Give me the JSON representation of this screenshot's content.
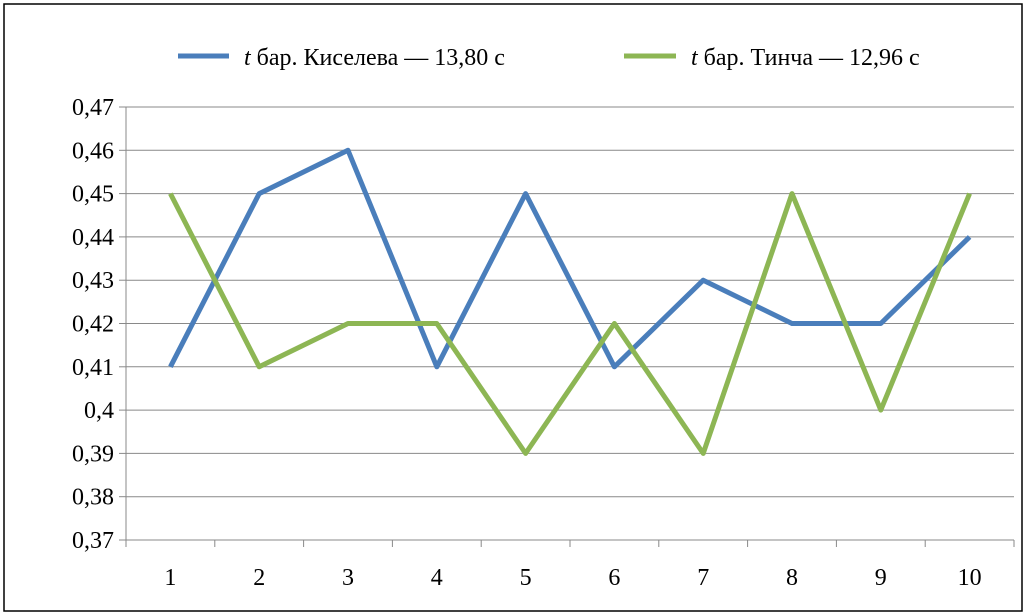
{
  "chart_data": {
    "type": "line",
    "categories": [
      "1",
      "2",
      "3",
      "4",
      "5",
      "6",
      "7",
      "8",
      "9",
      "10"
    ],
    "series": [
      {
        "name_italic": "t",
        "name": "бар. Киселева — 13,80 с",
        "color": "#4a7ebb",
        "values": [
          0.41,
          0.45,
          0.46,
          0.41,
          0.45,
          0.41,
          0.43,
          0.42,
          0.42,
          0.44
        ]
      },
      {
        "name_italic": "t",
        "name": "бар. Тинча — 12,96 с",
        "color": "#8db654",
        "values": [
          0.45,
          0.41,
          0.42,
          0.42,
          0.39,
          0.42,
          0.39,
          0.45,
          0.4,
          0.45
        ]
      }
    ],
    "y_ticks": [
      "0,37",
      "0,38",
      "0,39",
      "0,4",
      "0,41",
      "0,42",
      "0,43",
      "0,44",
      "0,45",
      "0,46",
      "0,47"
    ],
    "ylim": [
      0.37,
      0.47
    ],
    "y_step": 0.01,
    "grid": "horizontal",
    "legend_position": "top",
    "gridline_color": "#898989",
    "border_color": "#000000"
  }
}
